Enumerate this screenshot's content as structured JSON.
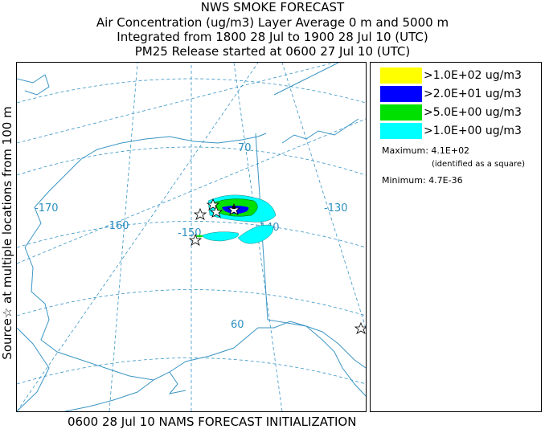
{
  "header": {
    "line1": "NWS SMOKE FORECAST",
    "line2": "Air Concentration (ug/m3) Layer Average    0 m and  5000 m",
    "line3": "Integrated from 1800 28 Jul to 1900 28 Jul 10 (UTC)",
    "line4": "PM25 Release started at 0600 27 Jul 10 (UTC)"
  },
  "side_label": "Source☆ at multiple locations   from  100 m",
  "map": {
    "lon_labels": [
      "-170",
      "-160",
      "-150",
      "-140",
      "-130"
    ],
    "lat_labels": [
      "70",
      "60"
    ],
    "colors": {
      "coast": "#3a95c4",
      "grid": "#3a95c4",
      "text": "#2e8fc0"
    }
  },
  "legend": {
    "items": [
      {
        "label": ">1.0E+02 ug/m3",
        "color": "#ffff00"
      },
      {
        "label": ">2.0E+01 ug/m3",
        "color": "#0000ff"
      },
      {
        "label": ">5.0E+00 ug/m3",
        "color": "#00e000"
      },
      {
        "label": ">1.0E+00 ug/m3",
        "color": "#00ffff"
      }
    ],
    "maximum": "Maximum: 4.1E+02",
    "maximum_note": "(identified as a square)",
    "minimum": "Minimum: 4.7E-36"
  },
  "footer": "0600 28 Jul 10 NAMS FORECAST INITIALIZATION"
}
